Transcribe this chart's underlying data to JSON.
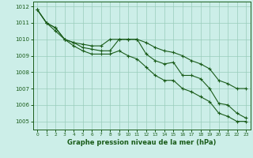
{
  "background_color": "#cceee8",
  "plot_bg_color": "#cceee8",
  "grid_color": "#99ccbb",
  "line_color": "#1a5c1a",
  "xlabel": "Graphe pression niveau de la mer (hPa)",
  "xlim": [
    -0.5,
    23.5
  ],
  "ylim": [
    1004.5,
    1012.3
  ],
  "yticks": [
    1005,
    1006,
    1007,
    1008,
    1009,
    1010,
    1011,
    1012
  ],
  "xticks": [
    0,
    1,
    2,
    3,
    4,
    5,
    6,
    7,
    8,
    9,
    10,
    11,
    12,
    13,
    14,
    15,
    16,
    17,
    18,
    19,
    20,
    21,
    22,
    23
  ],
  "series": [
    {
      "x": [
        0,
        1,
        2,
        3,
        4,
        5,
        6,
        7,
        8,
        9,
        10,
        11,
        12,
        13,
        14,
        15,
        16,
        17,
        18,
        19,
        20,
        21,
        22,
        23
      ],
      "y": [
        1011.8,
        1011.0,
        1010.7,
        1010.0,
        1009.8,
        1009.7,
        1009.6,
        1009.6,
        1010.0,
        1010.0,
        1010.0,
        1010.0,
        1009.8,
        1009.5,
        1009.3,
        1009.2,
        1009.0,
        1008.7,
        1008.5,
        1008.2,
        1007.5,
        1007.3,
        1007.0,
        1007.0
      ]
    },
    {
      "x": [
        0,
        1,
        2,
        3,
        4,
        5,
        6,
        7,
        8,
        9,
        10,
        11,
        12,
        13,
        14,
        15,
        16,
        17,
        18,
        19,
        20,
        21,
        22,
        23
      ],
      "y": [
        1011.8,
        1011.0,
        1010.7,
        1010.0,
        1009.8,
        1009.5,
        1009.4,
        1009.3,
        1009.3,
        1010.0,
        1010.0,
        1010.0,
        1009.1,
        1008.7,
        1008.5,
        1008.6,
        1007.8,
        1007.8,
        1007.6,
        1007.0,
        1006.1,
        1006.0,
        1005.5,
        1005.2
      ]
    },
    {
      "x": [
        0,
        1,
        2,
        3,
        4,
        5,
        6,
        7,
        8,
        9,
        10,
        11,
        12,
        13,
        14,
        15,
        16,
        17,
        18,
        19,
        20,
        21,
        22,
        23
      ],
      "y": [
        1011.8,
        1011.0,
        1010.5,
        1010.0,
        1009.6,
        1009.3,
        1009.1,
        1009.1,
        1009.1,
        1009.3,
        1009.0,
        1008.8,
        1008.3,
        1007.8,
        1007.5,
        1007.5,
        1007.0,
        1006.8,
        1006.5,
        1006.2,
        1005.5,
        1005.3,
        1005.0,
        1005.0
      ]
    }
  ]
}
